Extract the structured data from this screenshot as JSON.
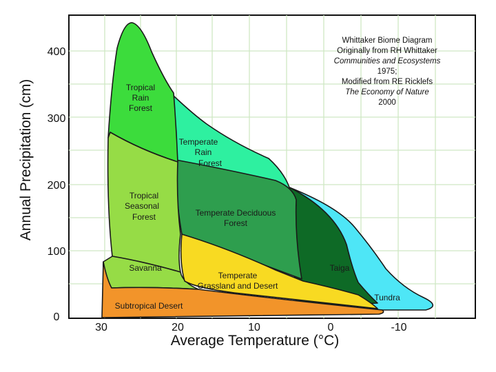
{
  "chart_data": {
    "type": "diagram",
    "xlabel": "Average Temperature (°C)",
    "ylabel": "Annual Precipitation (cm)",
    "x_ticks": [
      "30",
      "20",
      "10",
      "0",
      "-10"
    ],
    "y_ticks": [
      "400",
      "300",
      "200",
      "100",
      "0"
    ],
    "xlim": [
      35,
      -18
    ],
    "ylim": [
      0,
      450
    ],
    "grid": true,
    "colors": {
      "tropical_rain_forest": "#3cdc3c",
      "temperate_rain_forest": "#2ef0a0",
      "tropical_seasonal_forest": "#96dc46",
      "temperate_deciduous_forest": "#2e9e4e",
      "taiga": "#0e6a26",
      "tundra": "#4ee6f6",
      "savanna": "#96dc46",
      "temperate_grassland_desert": "#f8da22",
      "subtropical_desert": "#f2942a"
    },
    "biomes": {
      "tropical_rain_forest": [
        "Tropical",
        "Rain",
        "Forest"
      ],
      "temperate_rain_forest": [
        "Temperate",
        "Rain",
        "Forest"
      ],
      "tropical_seasonal_forest": [
        "Tropical",
        "Seasonal",
        "Forest"
      ],
      "temperate_deciduous_forest": [
        "Temperate Deciduous",
        "Forest"
      ],
      "taiga": [
        "Taiga"
      ],
      "tundra": [
        "Tundra"
      ],
      "savanna": [
        "Savanna"
      ],
      "temperate_grassland_desert": [
        "Temperate",
        "Grassland and Desert"
      ],
      "subtropical_desert": [
        "Subtropical Desert"
      ]
    },
    "annotation": [
      "Whittaker Biome Diagram",
      "Originally from RH Whittaker",
      "Communities and Ecosystems",
      "1975;",
      "Modified from RE Ricklefs",
      "The Economy of Nature",
      "2000"
    ]
  }
}
